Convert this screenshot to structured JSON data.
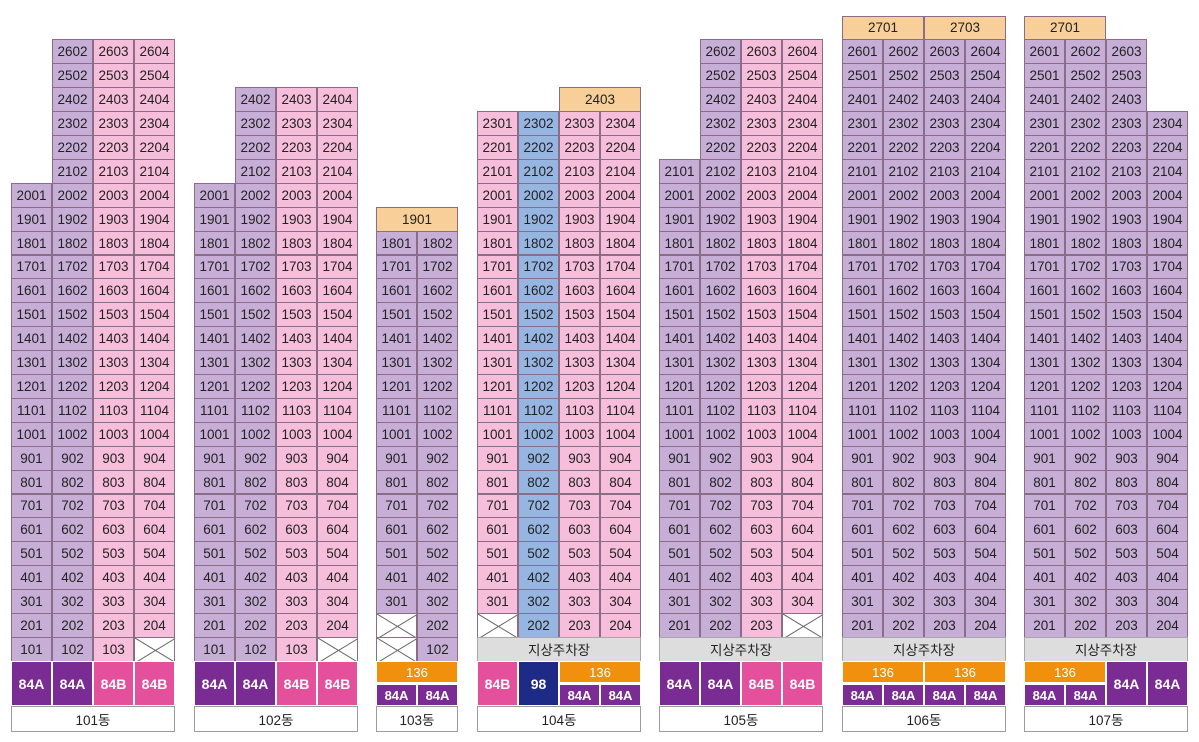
{
  "buildings": [
    {
      "name": "101동",
      "columns": [
        {
          "top_floor": 20,
          "color": "purple",
          "line": "01"
        },
        {
          "top_floor": 26,
          "color": "purple",
          "line": "02"
        },
        {
          "top_floor": 26,
          "color": "pink",
          "line": "03"
        },
        {
          "top_floor": 26,
          "color": "pink",
          "line": "04"
        }
      ],
      "base": [
        {
          "col": 0,
          "kind": "unit",
          "text": "101"
        },
        {
          "col": 1,
          "kind": "unit",
          "text": "102"
        },
        {
          "col": 2,
          "kind": "unit",
          "text": "103"
        },
        {
          "col": 3,
          "kind": "x"
        }
      ],
      "upper_rows": [],
      "parking": "",
      "types_rows": [
        [
          {
            "text": "84A",
            "span": 1,
            "color": "pA"
          },
          {
            "text": "84A",
            "span": 1,
            "color": "pA"
          },
          {
            "text": "84B",
            "span": 1,
            "color": "pB"
          },
          {
            "text": "84B",
            "span": 1,
            "color": "pB"
          }
        ]
      ]
    },
    {
      "name": "102동",
      "columns": [
        {
          "top_floor": 20,
          "color": "purple",
          "line": "01"
        },
        {
          "top_floor": 24,
          "color": "purple",
          "line": "02"
        },
        {
          "top_floor": 24,
          "color": "pink",
          "line": "03"
        },
        {
          "top_floor": 24,
          "color": "pink",
          "line": "04"
        }
      ],
      "base": [
        {
          "col": 0,
          "kind": "unit",
          "text": "101"
        },
        {
          "col": 1,
          "kind": "unit",
          "text": "102"
        },
        {
          "col": 2,
          "kind": "unit",
          "text": "103"
        },
        {
          "col": 3,
          "kind": "x"
        }
      ],
      "upper_rows": [],
      "parking": "",
      "types_rows": [
        [
          {
            "text": "84A",
            "span": 1,
            "color": "pA"
          },
          {
            "text": "84A",
            "span": 1,
            "color": "pA"
          },
          {
            "text": "84B",
            "span": 1,
            "color": "pB"
          },
          {
            "text": "84B",
            "span": 1,
            "color": "pB"
          }
        ]
      ]
    },
    {
      "name": "103동",
      "columns": [
        {
          "top_floor": 18,
          "color": "purple",
          "line": "01"
        },
        {
          "top_floor": 18,
          "color": "purple",
          "line": "02"
        }
      ],
      "base": [
        {
          "col": 0,
          "kind": "x"
        },
        {
          "col": 1,
          "kind": "unit",
          "text": "202"
        },
        {
          "col": 0,
          "kind": "x"
        },
        {
          "col": 1,
          "kind": "unit",
          "text": "102"
        }
      ],
      "upper_rows": [
        {
          "floor_label": "1901",
          "col": 0,
          "span": 2
        }
      ],
      "parking": "",
      "types_rows": [
        [
          {
            "text": "136",
            "span": 2,
            "color": "or"
          }
        ],
        [
          {
            "text": "84A",
            "span": 1,
            "color": "pA"
          },
          {
            "text": "84A",
            "span": 1,
            "color": "pA"
          }
        ]
      ]
    },
    {
      "name": "104동",
      "columns": [
        {
          "top_floor": 23,
          "color": "pink",
          "line": "01"
        },
        {
          "top_floor": 23,
          "color": "blue",
          "line": "02"
        },
        {
          "top_floor": 23,
          "color": "pink",
          "line": "03"
        },
        {
          "top_floor": 23,
          "color": "pink",
          "line": "04"
        }
      ],
      "base": [
        {
          "col": 0,
          "kind": "x"
        },
        {
          "col": 1,
          "kind": "unit",
          "text": "202"
        },
        {
          "col": 2,
          "kind": "unit",
          "text": "203"
        },
        {
          "col": 3,
          "kind": "unit",
          "text": "204"
        }
      ],
      "upper_rows": [
        {
          "floor_label": "2403",
          "col": 2,
          "span": 2
        }
      ],
      "parking": "지상주차장",
      "types_rows": [
        [
          {
            "text": "84B",
            "span": 1,
            "rowspan": 2,
            "color": "pB"
          },
          {
            "text": "98",
            "span": 1,
            "rowspan": 2,
            "color": "navy"
          },
          {
            "text": "136",
            "span": 2,
            "color": "or"
          }
        ],
        [
          {
            "text": "84A",
            "span": 1,
            "color": "pA",
            "col": 2
          },
          {
            "text": "84A",
            "span": 1,
            "color": "pA",
            "col": 3
          }
        ]
      ]
    },
    {
      "name": "105동",
      "columns": [
        {
          "top_floor": 21,
          "color": "purple",
          "line": "01"
        },
        {
          "top_floor": 26,
          "color": "purple",
          "line": "02"
        },
        {
          "top_floor": 26,
          "color": "pink",
          "line": "03"
        },
        {
          "top_floor": 26,
          "color": "pink",
          "line": "04"
        }
      ],
      "base": [
        {
          "col": 0,
          "kind": "unit",
          "text": "201"
        },
        {
          "col": 1,
          "kind": "unit",
          "text": "202"
        },
        {
          "col": 2,
          "kind": "unit",
          "text": "203"
        },
        {
          "col": 3,
          "kind": "x"
        }
      ],
      "upper_rows": [],
      "parking": "지상주차장",
      "types_rows": [
        [
          {
            "text": "84A",
            "span": 1,
            "rowspan": 2,
            "color": "pA"
          },
          {
            "text": "84A",
            "span": 1,
            "rowspan": 2,
            "color": "pA"
          },
          {
            "text": "84B",
            "span": 1,
            "rowspan": 2,
            "color": "pB"
          },
          {
            "text": "84B",
            "span": 1,
            "rowspan": 2,
            "color": "pB"
          }
        ]
      ]
    },
    {
      "name": "106동",
      "columns": [
        {
          "top_floor": 26,
          "color": "purple",
          "line": "01"
        },
        {
          "top_floor": 26,
          "color": "purple",
          "line": "02"
        },
        {
          "top_floor": 26,
          "color": "purple",
          "line": "03"
        },
        {
          "top_floor": 26,
          "color": "purple",
          "line": "04"
        }
      ],
      "base": [
        {
          "col": 0,
          "kind": "unit",
          "text": "201"
        },
        {
          "col": 1,
          "kind": "unit",
          "text": "202"
        },
        {
          "col": 2,
          "kind": "unit",
          "text": "203"
        },
        {
          "col": 3,
          "kind": "unit",
          "text": "204"
        }
      ],
      "upper_rows": [
        {
          "floor_label": "2701",
          "col": 0,
          "span": 2
        },
        {
          "floor_label": "2703",
          "col": 2,
          "span": 2
        }
      ],
      "parking": "지상주차장",
      "types_rows": [
        [
          {
            "text": "136",
            "span": 2,
            "color": "or"
          },
          {
            "text": "136",
            "span": 2,
            "color": "or"
          }
        ],
        [
          {
            "text": "84A",
            "span": 1,
            "color": "pA"
          },
          {
            "text": "84A",
            "span": 1,
            "color": "pA"
          },
          {
            "text": "84A",
            "span": 1,
            "color": "pA"
          },
          {
            "text": "84A",
            "span": 1,
            "color": "pA"
          }
        ]
      ]
    },
    {
      "name": "107동",
      "columns": [
        {
          "top_floor": 26,
          "color": "purple",
          "line": "01"
        },
        {
          "top_floor": 26,
          "color": "purple",
          "line": "02"
        },
        {
          "top_floor": 26,
          "color": "purple",
          "line": "03"
        },
        {
          "top_floor": 23,
          "color": "purple",
          "line": "04"
        }
      ],
      "base": [
        {
          "col": 0,
          "kind": "unit",
          "text": "201"
        },
        {
          "col": 1,
          "kind": "unit",
          "text": "202"
        },
        {
          "col": 2,
          "kind": "unit",
          "text": "203"
        },
        {
          "col": 3,
          "kind": "unit",
          "text": "204"
        }
      ],
      "upper_rows": [
        {
          "floor_label": "2701",
          "col": 0,
          "span": 2
        }
      ],
      "parking": "지상주차장",
      "types_rows": [
        [
          {
            "text": "136",
            "span": 2,
            "color": "or"
          },
          {
            "text": "84A",
            "span": 1,
            "rowspan": 2,
            "color": "pA",
            "col": 2
          },
          {
            "text": "84A",
            "span": 1,
            "rowspan": 2,
            "color": "pA",
            "col": 3
          }
        ],
        [
          {
            "text": "84A",
            "span": 1,
            "color": "pA"
          },
          {
            "text": "84A",
            "span": 1,
            "color": "pA"
          }
        ]
      ]
    }
  ]
}
